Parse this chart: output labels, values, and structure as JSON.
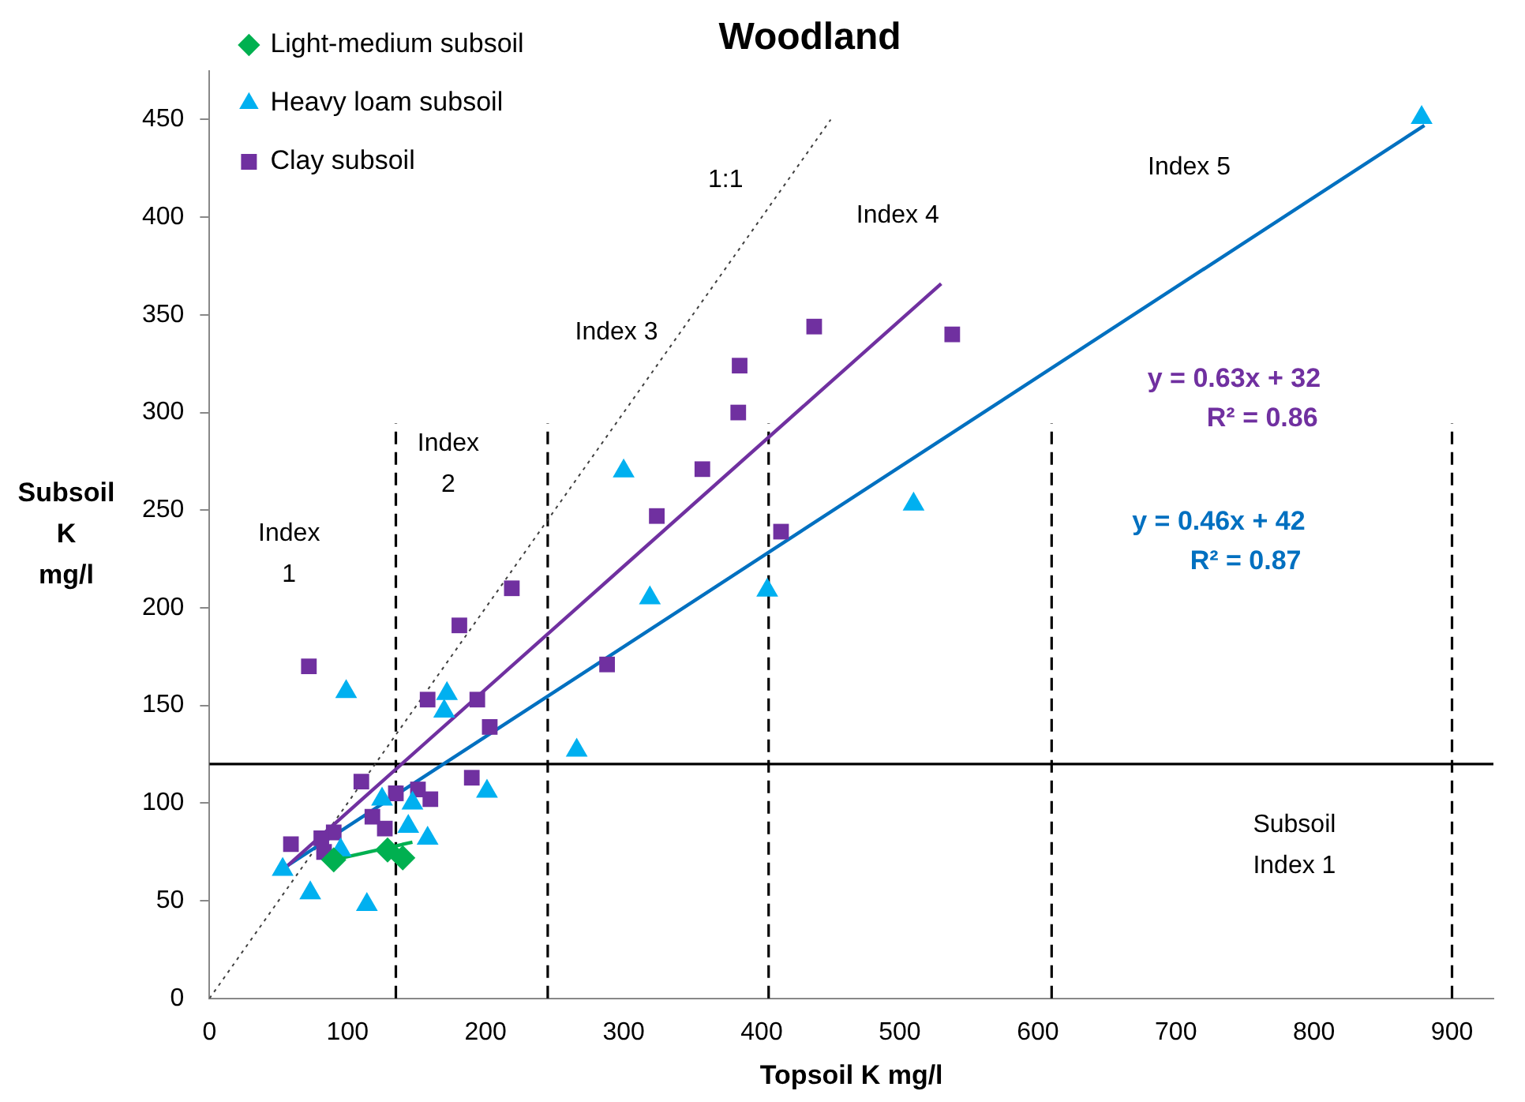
{
  "chart_data": {
    "type": "scatter",
    "title": "Woodland",
    "xlabel": "Topsoil K mg/l",
    "ylabel": "Subsoil K mg/l",
    "xlim": [
      0,
      930
    ],
    "ylim": [
      0,
      475
    ],
    "xticks": [
      0,
      100,
      200,
      300,
      400,
      500,
      600,
      700,
      800,
      900
    ],
    "yticks": [
      0,
      50,
      100,
      150,
      200,
      250,
      300,
      350,
      400,
      450
    ],
    "grid": false,
    "legend": "top left",
    "series": [
      {
        "name": "Light-medium subsoil",
        "color": "#00b050",
        "marker": "diamond",
        "x": [
          90,
          129,
          140
        ],
        "values": [
          71,
          76,
          72
        ]
      },
      {
        "name": "Heavy loam subsoil",
        "color": "#00b0f0",
        "marker": "triangle",
        "x": [
          878,
          300,
          319,
          404,
          510,
          266,
          99,
          172,
          170,
          201,
          158,
          144,
          147,
          125,
          95,
          53,
          73,
          114
        ],
        "values": [
          451,
          270,
          205,
          209,
          253,
          127,
          157,
          156,
          147,
          106,
          82,
          88,
          100,
          102,
          76,
          66,
          54,
          48
        ]
      },
      {
        "name": "Clay subsoil",
        "color": "#7030a0",
        "marker": "square",
        "x": [
          438,
          538,
          384,
          383,
          357,
          324,
          414,
          288,
          219,
          181,
          72,
          158,
          194,
          203,
          190,
          110,
          151,
          160,
          135,
          118,
          127,
          90,
          81,
          83,
          59
        ],
        "values": [
          344,
          340,
          324,
          300,
          271,
          247,
          239,
          171,
          210,
          191,
          170,
          153,
          153,
          139,
          113,
          111,
          107,
          102,
          105,
          93,
          87,
          85,
          82,
          75,
          79
        ]
      },
      {
        "type": "line",
        "color": "#00b050",
        "marker": "none",
        "x": [
          90,
          147
        ],
        "values": [
          71,
          80
        ]
      },
      {
        "type": "line",
        "color": "#7030a0",
        "marker": "none",
        "x": [
          55,
          530
        ],
        "values": [
          67,
          366
        ]
      },
      {
        "type": "line",
        "color": "#0070c0",
        "marker": "none",
        "x": [
          50,
          880
        ],
        "values": [
          65,
          447
        ]
      },
      {
        "type": "line",
        "color": "#404040",
        "marker": "none",
        "line_style": "dotted",
        "x": [
          0,
          450
        ],
        "values": [
          0,
          450
        ]
      }
    ],
    "ref_lines": [
      {
        "axis": "x",
        "value": 135,
        "line_style": "dashed",
        "color": "#000000"
      },
      {
        "axis": "x",
        "value": 245,
        "line_style": "dashed",
        "color": "#000000"
      },
      {
        "axis": "x",
        "value": 405,
        "line_style": "dashed",
        "color": "#000000"
      },
      {
        "axis": "x",
        "value": 610,
        "line_style": "dashed",
        "color": "#000000"
      },
      {
        "axis": "x",
        "value": 900,
        "line_style": "dashed",
        "color": "#000000"
      },
      {
        "axis": "y",
        "value": 120,
        "line_style": "solid",
        "color": "#000000"
      }
    ],
    "annotations": [
      "Index 1",
      "Index 2",
      "Index 3",
      "Index 4",
      "Index 5",
      "Subsoil Index 1",
      "1:1",
      "y = 0.63x + 32",
      "R² = 0.86",
      "y = 0.46x + 42",
      "R² = 0.87"
    ]
  }
}
